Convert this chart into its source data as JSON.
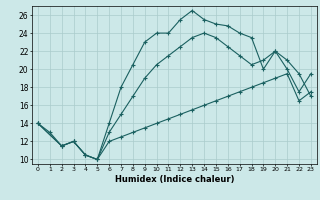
{
  "title": "",
  "xlabel": "Humidex (Indice chaleur)",
  "bg_color": "#cce8e8",
  "grid_color": "#aacccc",
  "line_color": "#1a6060",
  "xlim": [
    -0.5,
    23.5
  ],
  "ylim": [
    9.5,
    27
  ],
  "xticks": [
    0,
    1,
    2,
    3,
    4,
    5,
    6,
    7,
    8,
    9,
    10,
    11,
    12,
    13,
    14,
    15,
    16,
    17,
    18,
    19,
    20,
    21,
    22,
    23
  ],
  "yticks": [
    10,
    12,
    14,
    16,
    18,
    20,
    22,
    24,
    26
  ],
  "curve1_x": [
    0,
    1,
    2,
    3,
    4,
    5,
    6,
    7,
    8,
    9,
    10,
    11,
    12,
    13,
    14,
    15,
    16,
    17,
    18,
    19,
    20,
    21,
    22,
    23
  ],
  "curve1_y": [
    14,
    13,
    11.5,
    12,
    10.5,
    10.0,
    14.0,
    18.0,
    20.5,
    23.0,
    24.0,
    24.0,
    25.5,
    26.5,
    25.5,
    25.0,
    24.8,
    24.0,
    23.5,
    20.0,
    22.0,
    20.0,
    17.5,
    19.5
  ],
  "curve2_x": [
    0,
    2,
    3,
    4,
    5,
    6,
    7,
    8,
    9,
    10,
    11,
    12,
    13,
    14,
    15,
    16,
    17,
    18,
    19,
    20,
    21,
    22,
    23
  ],
  "curve2_y": [
    14,
    11.5,
    12,
    10.5,
    10.0,
    13.0,
    15.0,
    17.0,
    19.0,
    20.5,
    21.5,
    22.5,
    23.5,
    24.0,
    23.5,
    22.5,
    21.5,
    20.5,
    21.0,
    22.0,
    21.0,
    19.5,
    17.0
  ],
  "curve3_x": [
    0,
    2,
    3,
    4,
    5,
    6,
    7,
    8,
    9,
    10,
    11,
    12,
    13,
    14,
    15,
    16,
    17,
    18,
    19,
    20,
    21,
    22,
    23
  ],
  "curve3_y": [
    14,
    11.5,
    12,
    10.5,
    10.0,
    12.0,
    12.5,
    13.0,
    13.5,
    14.0,
    14.5,
    15.0,
    15.5,
    16.0,
    16.5,
    17.0,
    17.5,
    18.0,
    18.5,
    19.0,
    19.5,
    16.5,
    17.5
  ]
}
